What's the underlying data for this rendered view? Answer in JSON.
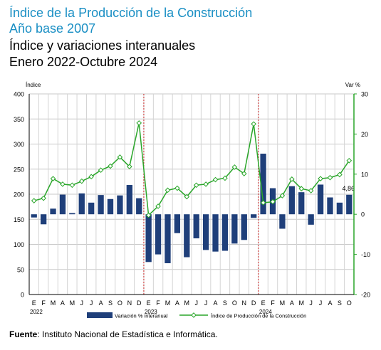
{
  "header": {
    "title": "Índice de la Producción de la Construcción",
    "subtitle": "Año base 2007",
    "chart_title": "Índice y variaciones interanuales",
    "period": "Enero 2022-Octubre 2024"
  },
  "source": {
    "label": "Fuente",
    "text": ": Instituto Nacional de Estadística e Informática."
  },
  "colors": {
    "bars": "#1f3f7a",
    "line": "#2aa62a",
    "axis_right": "#2aa62a",
    "divider": "#cc2222",
    "title_accent": "#1a8fc4"
  },
  "chart_data": {
    "type": "bar",
    "left_axis_label": "Índice",
    "right_axis_label": "Var %",
    "left_ylim": [
      0,
      400
    ],
    "left_ticks": [
      "0",
      "50",
      "100",
      "150",
      "200",
      "250",
      "300",
      "350",
      "400"
    ],
    "right_ylim": [
      -20,
      30
    ],
    "right_ticks": [
      "-20",
      "-10",
      "0",
      "10",
      "20",
      "30"
    ],
    "categories": [
      "E",
      "F",
      "M",
      "A",
      "M",
      "J",
      "J",
      "A",
      "S",
      "O",
      "N",
      "D",
      "E",
      "F",
      "M",
      "A",
      "M",
      "J",
      "J",
      "A",
      "S",
      "O",
      "N",
      "D",
      "E",
      "F",
      "M",
      "A",
      "M",
      "J",
      "J",
      "A",
      "S",
      "O"
    ],
    "year_labels": [
      {
        "index": 0,
        "text": "2022"
      },
      {
        "index": 12,
        "text": "2023"
      },
      {
        "index": 24,
        "text": "2024"
      }
    ],
    "dividers_between": [
      11,
      23
    ],
    "grid": true,
    "series": [
      {
        "name": "Variación % interanual",
        "kind": "bar",
        "axis": "right",
        "values": [
          -0.8,
          -2.5,
          1.4,
          4.9,
          0.3,
          5.2,
          2.9,
          4.8,
          3.8,
          4.7,
          7.3,
          4.0,
          -11.9,
          -10.0,
          -12.2,
          -4.7,
          -10.7,
          -6.0,
          -8.9,
          -9.3,
          -9.1,
          -7.3,
          -6.4,
          -0.9,
          15.1,
          6.5,
          -3.6,
          7.0,
          5.5,
          -2.6,
          7.4,
          4.2,
          2.9,
          4.86
        ]
      },
      {
        "name": "Índice de Producción de la Construcción",
        "kind": "line",
        "axis": "left",
        "values": [
          187,
          192,
          231,
          220,
          218,
          226,
          235,
          248,
          256,
          274,
          255,
          342,
          158,
          176,
          208,
          212,
          195,
          218,
          220,
          229,
          232,
          254,
          241,
          340,
          183,
          185,
          197,
          230,
          211,
          207,
          231,
          233,
          239,
          267
        ]
      }
    ],
    "data_labels": [
      {
        "index": 33,
        "text": "4,86"
      }
    ],
    "legend_position": "bottom"
  }
}
